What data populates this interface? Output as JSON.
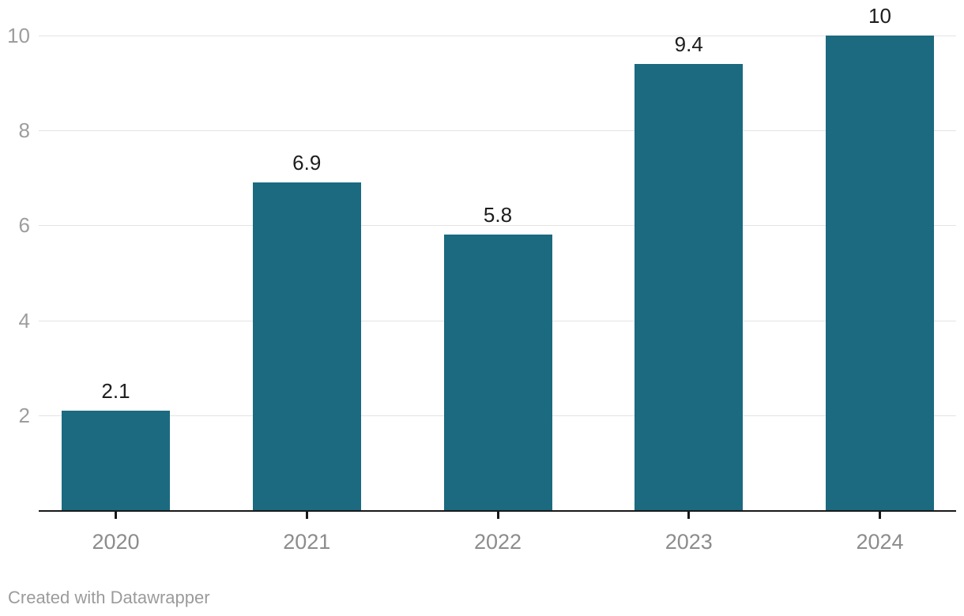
{
  "chart_data": {
    "type": "bar",
    "categories": [
      "2020",
      "2021",
      "2022",
      "2023",
      "2024"
    ],
    "values": [
      2.1,
      6.9,
      5.8,
      9.4,
      10
    ],
    "value_labels": [
      "2.1",
      "6.9",
      "5.8",
      "9.4",
      "10"
    ],
    "title": "",
    "xlabel": "",
    "ylabel": "",
    "ylim": [
      0,
      10
    ],
    "yticks": [
      2,
      4,
      6,
      8,
      10
    ],
    "grid": true,
    "legend": "none",
    "bar_color": "#1b6a80"
  },
  "colors": {
    "bar": "#1b6a80",
    "gridline": "#e3e3e3",
    "baseline": "#18181a",
    "y_tick_label": "#9d9d9d",
    "x_tick_label": "#8c8c8c",
    "value_label": "#1d1d1d",
    "footer_text": "#9b9b9b",
    "background": "#ffffff"
  },
  "footer": {
    "attribution": "Created with Datawrapper"
  }
}
